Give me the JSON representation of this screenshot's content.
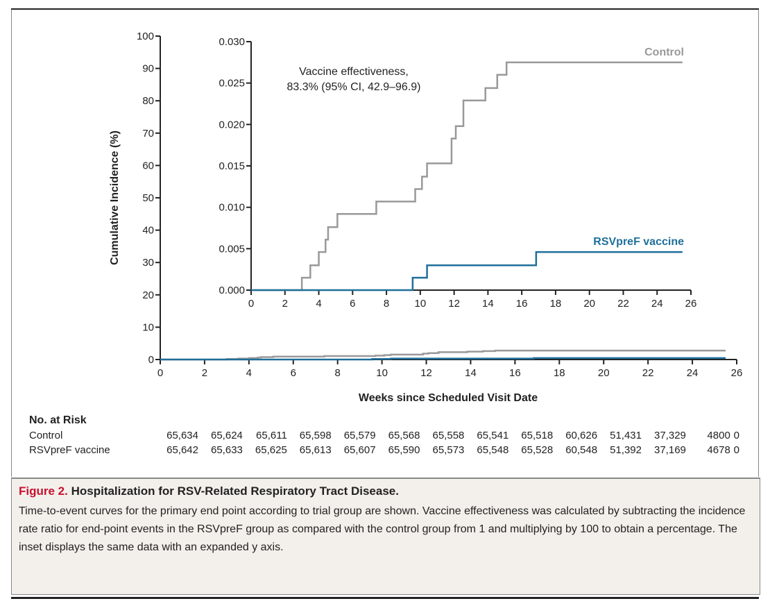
{
  "chart_data": {
    "type": "line",
    "step": true,
    "main": {
      "xlabel": "Weeks since Scheduled Visit Date",
      "ylabel": "Cumulative Incidence (%)",
      "xlim": [
        0,
        26
      ],
      "ylim": [
        0,
        100
      ],
      "xticks": [
        "0",
        "2",
        "4",
        "6",
        "8",
        "10",
        "12",
        "14",
        "16",
        "18",
        "20",
        "22",
        "24",
        "26"
      ],
      "yticks": [
        "0",
        "10",
        "20",
        "30",
        "40",
        "50",
        "60",
        "70",
        "80",
        "90",
        "100"
      ]
    },
    "inset": {
      "xlim": [
        0,
        26
      ],
      "ylim": [
        0,
        0.03
      ],
      "xticks": [
        "0",
        "2",
        "4",
        "6",
        "8",
        "10",
        "12",
        "14",
        "16",
        "18",
        "20",
        "22",
        "24",
        "26"
      ],
      "yticks": [
        "0.000",
        "0.005",
        "0.010",
        "0.015",
        "0.020",
        "0.025",
        "0.030"
      ],
      "annotation_line1": "Vaccine effectiveness,",
      "annotation_line2": "83.3% (95% CI, 42.9–96.9)"
    },
    "series": [
      {
        "name": "Control",
        "color": "#999999",
        "x": [
          0,
          3.0,
          3.5,
          4.0,
          4.4,
          4.55,
          5.1,
          7.4,
          9.7,
          10.1,
          10.4,
          11.85,
          12.1,
          12.55,
          13.85,
          14.55,
          15.1,
          25.5
        ],
        "y": [
          0,
          0.0015,
          0.003,
          0.0046,
          0.0061,
          0.0076,
          0.0092,
          0.0107,
          0.0122,
          0.0137,
          0.0153,
          0.0183,
          0.0198,
          0.0229,
          0.0244,
          0.026,
          0.0275,
          0.0275
        ]
      },
      {
        "name": "RSVpreF vaccine",
        "color": "#1f6f9a",
        "x": [
          0,
          9.55,
          10.4,
          16.85,
          25.5
        ],
        "y": [
          0,
          0.0015,
          0.003,
          0.0046,
          0.0046
        ]
      }
    ]
  },
  "risk_table": {
    "title": "No. at Risk",
    "rows": [
      {
        "label": "Control",
        "values": [
          "65,634",
          "65,624",
          "65,611",
          "65,598",
          "65,579",
          "65,568",
          "65,558",
          "65,541",
          "65,518",
          "60,626",
          "51,431",
          "37,329",
          "4800",
          "0"
        ]
      },
      {
        "label": "RSVpreF vaccine",
        "values": [
          "65,642",
          "65,633",
          "65,625",
          "65,613",
          "65,607",
          "65,590",
          "65,573",
          "65,548",
          "65,528",
          "60,548",
          "51,392",
          "37,169",
          "4678",
          "0"
        ]
      }
    ]
  },
  "caption": {
    "figure_label": "Figure 2.",
    "title": "Hospitalization for RSV-Related Respiratory Tract Disease.",
    "body": "Time-to-event curves for the primary end point according to trial group are shown. Vaccine effectiveness was calculated by subtracting the incidence rate ratio for end-point events in the RSVpreF group as compared with the control group from 1 and multiplying by 100 to obtain a percentage. The inset displays the same data with an expanded y axis."
  }
}
